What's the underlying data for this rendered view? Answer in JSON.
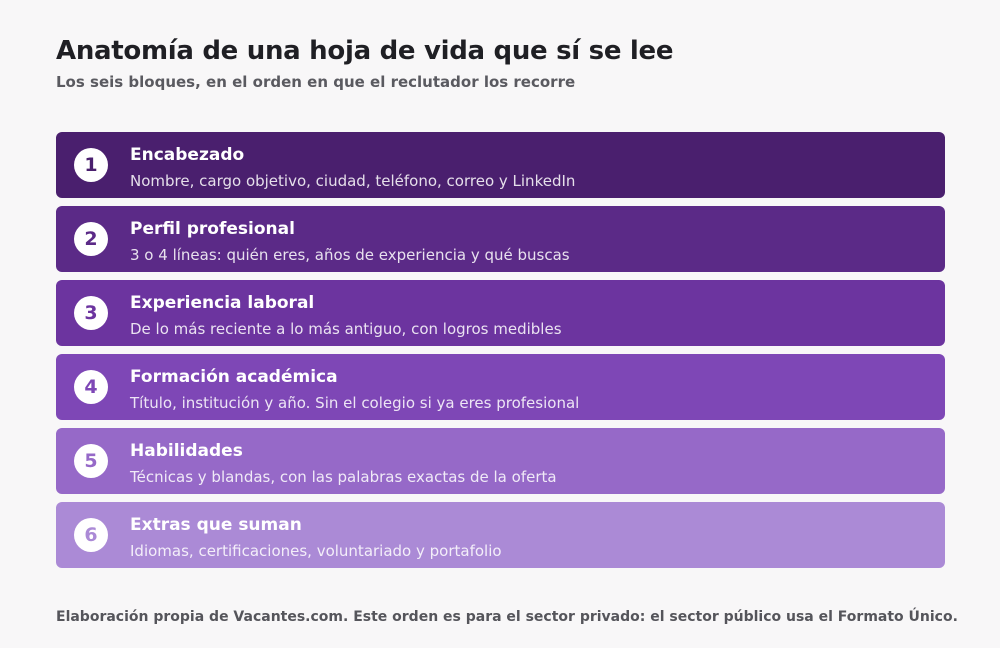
{
  "header": {
    "title": "Anatomía de una hoja de vida que sí se lee",
    "subtitle": "Los seis bloques, en el orden en que el reclutador los recorre"
  },
  "blocks": [
    {
      "number": "1",
      "title": "Encabezado",
      "description": "Nombre, cargo objetivo, ciudad, teléfono, correo y LinkedIn",
      "color": "#4a1f6e",
      "number_color": "#4a1f6e"
    },
    {
      "number": "2",
      "title": "Perfil profesional",
      "description": "3 o 4 líneas: quién eres, años de experiencia y qué buscas",
      "color": "#5b2a87",
      "number_color": "#5b2a87"
    },
    {
      "number": "3",
      "title": "Experiencia laboral",
      "description": "De lo más reciente a lo más antiguo, con logros medibles",
      "color": "#6c349f",
      "number_color": "#6c349f"
    },
    {
      "number": "4",
      "title": "Formación académica",
      "description": "Título, institución y año. Sin el colegio si ya eres profesional",
      "color": "#7e47b6",
      "number_color": "#7e47b6"
    },
    {
      "number": "5",
      "title": "Habilidades",
      "description": "Técnicas y blandas, con las palabras exactas de la oferta",
      "color": "#9669c8",
      "number_color": "#9669c8"
    },
    {
      "number": "6",
      "title": "Extras que suman",
      "description": "Idiomas, certificaciones, voluntariado y portafolio",
      "color": "#ab8ad6",
      "number_color": "#ab8ad6"
    }
  ],
  "footer": {
    "note": "Elaboración propia de Vacantes.com. Este orden es para el sector privado: el sector público usa el Formato Único."
  }
}
